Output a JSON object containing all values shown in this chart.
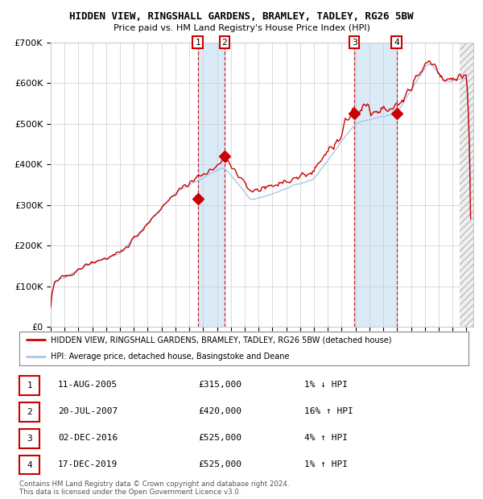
{
  "title": "HIDDEN VIEW, RINGSHALL GARDENS, BRAMLEY, TADLEY, RG26 5BW",
  "subtitle": "Price paid vs. HM Land Registry's House Price Index (HPI)",
  "legend_line1": "HIDDEN VIEW, RINGSHALL GARDENS, BRAMLEY, TADLEY, RG26 5BW (detached house)",
  "legend_line2": "HPI: Average price, detached house, Basingstoke and Deane",
  "footer1": "Contains HM Land Registry data © Crown copyright and database right 2024.",
  "footer2": "This data is licensed under the Open Government Licence v3.0.",
  "sales": [
    {
      "num": 1,
      "date": "11-AUG-2005",
      "price": "£315,000",
      "hpi": "1% ↓ HPI",
      "year": 2005.61
    },
    {
      "num": 2,
      "date": "20-JUL-2007",
      "price": "£420,000",
      "hpi": "16% ↑ HPI",
      "year": 2007.54
    },
    {
      "num": 3,
      "date": "02-DEC-2016",
      "price": "£525,000",
      "hpi": "4% ↑ HPI",
      "year": 2016.92
    },
    {
      "num": 4,
      "date": "17-DEC-2019",
      "price": "£525,000",
      "hpi": "1% ↑ HPI",
      "year": 2019.96
    }
  ],
  "sale_values": [
    315000,
    420000,
    525000,
    525000
  ],
  "xmin": 1995.0,
  "xmax": 2025.5,
  "ymin": 0,
  "ymax": 700000,
  "hpi_color": "#a8c8e8",
  "price_color": "#cc0000",
  "background_color": "#ffffff",
  "grid_color": "#cccccc",
  "shade_color": "#daeaf7",
  "hatch_start": 2024.5
}
